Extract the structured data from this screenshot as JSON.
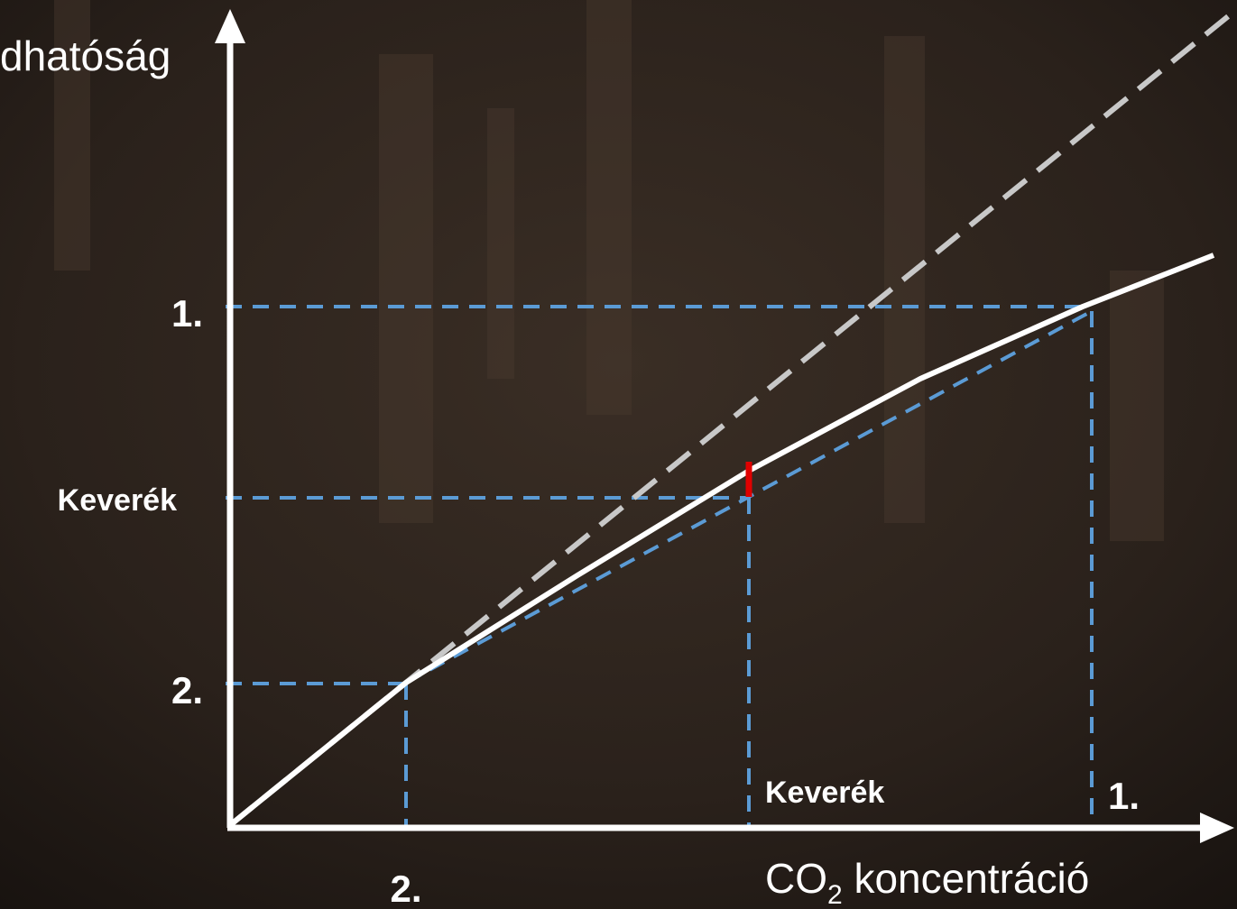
{
  "y_axis": {
    "label": "dhatóság",
    "ticks": [
      "1.",
      "Keverék",
      "2."
    ]
  },
  "x_axis": {
    "label": {
      "main": "CO",
      "subscript": "2",
      "rest": " koncentráció"
    },
    "ticks": [
      "2.",
      "Keverék",
      "1."
    ]
  }
}
